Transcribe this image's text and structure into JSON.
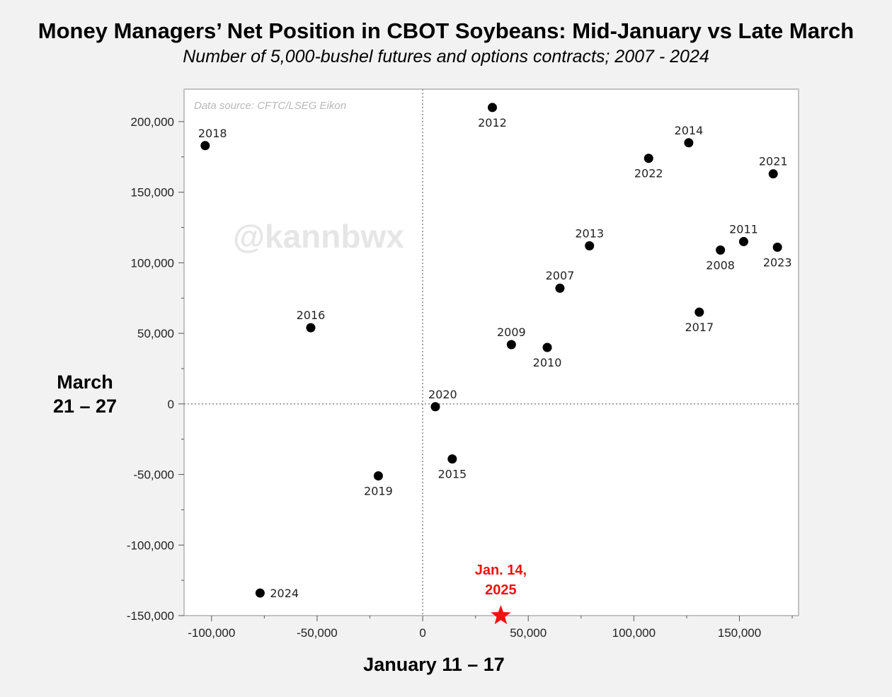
{
  "chart_data": {
    "type": "scatter",
    "title": "Money Managers’ Net Position in CBOT Soybeans: Mid-January vs Late March",
    "subtitle": "Number of 5,000-bushel futures and options contracts; 2007 - 2024",
    "xlabel": "January 11 – 17",
    "ylabel_lines": [
      "March",
      "21 – 27"
    ],
    "source_note": "Data source: CFTC/LSEG Eikon",
    "watermark": "@kannbwx",
    "xlim": [
      -113000,
      178000
    ],
    "ylim": [
      -150000,
      223000
    ],
    "x_ticks": [
      -100000,
      -50000,
      0,
      50000,
      100000,
      150000
    ],
    "x_tick_labels": [
      "-100,000",
      "-50,000",
      "0",
      "50,000",
      "100,000",
      "150,000"
    ],
    "y_ticks": [
      -150000,
      -100000,
      -50000,
      0,
      50000,
      100000,
      150000,
      200000
    ],
    "y_tick_labels": [
      "-150,000",
      "-100,000",
      "-50,000",
      "0",
      "50,000",
      "100,000",
      "150,000",
      "200,000"
    ],
    "reference_lines": {
      "x": 0,
      "y": 0,
      "style": "dotted"
    },
    "points": [
      {
        "label": "2007",
        "x": 65000,
        "y": 82000,
        "label_pos": "top"
      },
      {
        "label": "2008",
        "x": 141000,
        "y": 109000,
        "label_pos": "bottom"
      },
      {
        "label": "2009",
        "x": 42000,
        "y": 42000,
        "label_pos": "top"
      },
      {
        "label": "2010",
        "x": 59000,
        "y": 40000,
        "label_pos": "bottom"
      },
      {
        "label": "2011",
        "x": 152000,
        "y": 115000,
        "label_pos": "top"
      },
      {
        "label": "2012",
        "x": 33000,
        "y": 210000,
        "label_pos": "bottom"
      },
      {
        "label": "2013",
        "x": 79000,
        "y": 112000,
        "label_pos": "top"
      },
      {
        "label": "2014",
        "x": 126000,
        "y": 185000,
        "label_pos": "top"
      },
      {
        "label": "2015",
        "x": 14000,
        "y": -39000,
        "label_pos": "bottom"
      },
      {
        "label": "2016",
        "x": -53000,
        "y": 54000,
        "label_pos": "top"
      },
      {
        "label": "2017",
        "x": 131000,
        "y": 65000,
        "label_pos": "bottom"
      },
      {
        "label": "2018",
        "x": -103000,
        "y": 183000,
        "label_pos": "top-right"
      },
      {
        "label": "2019",
        "x": -21000,
        "y": -51000,
        "label_pos": "bottom"
      },
      {
        "label": "2020",
        "x": 6000,
        "y": -2000,
        "label_pos": "top-right"
      },
      {
        "label": "2021",
        "x": 166000,
        "y": 163000,
        "label_pos": "top"
      },
      {
        "label": "2022",
        "x": 107000,
        "y": 174000,
        "label_pos": "bottom"
      },
      {
        "label": "2023",
        "x": 168000,
        "y": 111000,
        "label_pos": "bottom"
      },
      {
        "label": "2024",
        "x": -77000,
        "y": -134000,
        "label_pos": "right"
      }
    ],
    "highlight": {
      "label_lines": [
        "Jan. 14,",
        "2025"
      ],
      "x": 37000,
      "y": -150000,
      "marker": "star",
      "color": "#ee1111"
    }
  }
}
